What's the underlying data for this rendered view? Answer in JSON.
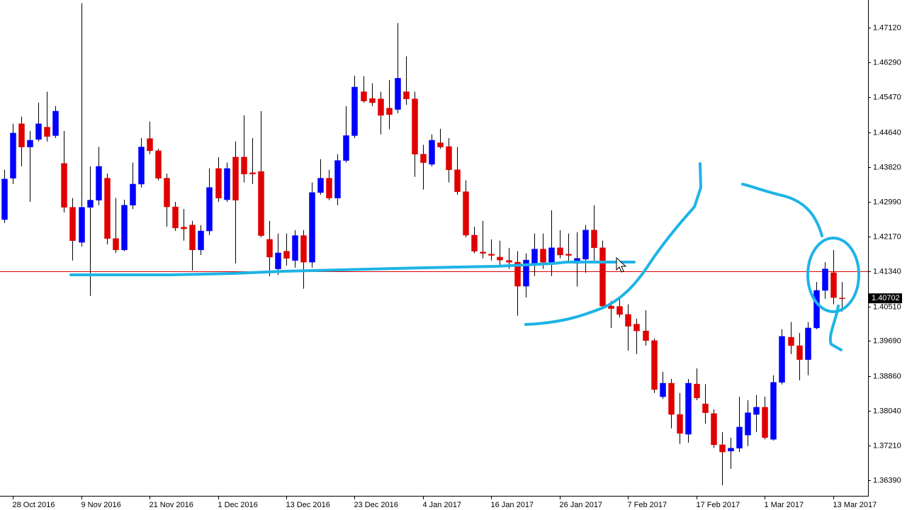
{
  "chart_data": {
    "type": "candlestick",
    "up_color": "#0000ff",
    "down_color": "#e00000",
    "wick_color": "#000000",
    "line_color": "#e00000",
    "ylim": [
      1.3602,
      1.47775
    ],
    "yticks": [
      {
        "value": 1.4712,
        "label": "1.47120"
      },
      {
        "value": 1.4629,
        "label": "1.46290"
      },
      {
        "value": 1.4547,
        "label": "1.45470"
      },
      {
        "value": 1.4464,
        "label": "1.44640"
      },
      {
        "value": 1.4382,
        "label": "1.43820"
      },
      {
        "value": 1.4299,
        "label": "1.42990"
      },
      {
        "value": 1.4217,
        "label": "1.42170"
      },
      {
        "value": 1.4134,
        "label": "1.41340"
      },
      {
        "value": 1.4051,
        "label": "1.40510"
      },
      {
        "value": 1.3969,
        "label": "1.39690"
      },
      {
        "value": 1.3886,
        "label": "1.38860"
      },
      {
        "value": 1.3804,
        "label": "1.38040"
      },
      {
        "value": 1.3721,
        "label": "1.37210"
      },
      {
        "value": 1.3639,
        "label": "1.36390"
      }
    ],
    "horizontal_line": 1.4134,
    "last_price": 1.40702,
    "categories": [
      null,
      "28 Oct 2016",
      null,
      null,
      null,
      null,
      null,
      null,
      null,
      "9 Nov 2016",
      null,
      null,
      null,
      null,
      null,
      null,
      null,
      "21 Nov 2016",
      null,
      null,
      null,
      null,
      null,
      null,
      null,
      "1 Dec 2016",
      null,
      null,
      null,
      null,
      null,
      null,
      null,
      "13 Dec 2016",
      null,
      null,
      null,
      null,
      null,
      null,
      null,
      "23 Dec 2016",
      null,
      null,
      null,
      null,
      null,
      null,
      null,
      "4 Jan 2017",
      null,
      null,
      null,
      null,
      null,
      null,
      null,
      "16 Jan 2017",
      null,
      null,
      null,
      null,
      null,
      null,
      null,
      "26 Jan 2017",
      null,
      null,
      null,
      null,
      null,
      null,
      null,
      "7 Feb 2017",
      null,
      null,
      null,
      null,
      null,
      null,
      null,
      "17 Feb 2017",
      null,
      null,
      null,
      null,
      null,
      null,
      null,
      "1 Mar 2017",
      null,
      null,
      null,
      null,
      null,
      null,
      null,
      "13 Mar 2017",
      null
    ],
    "open": [
      1.4257,
      1.4355,
      1.4484,
      1.4429,
      1.4447,
      1.4476,
      1.4456,
      1.439,
      1.4286,
      1.4203,
      1.4286,
      1.4303,
      1.4355,
      1.4212,
      1.4185,
      1.4291,
      1.4341,
      1.4449,
      1.442,
      1.4355,
      1.4287,
      1.4239,
      1.4244,
      1.4185,
      1.423,
      1.4378,
      1.4304,
      1.4405,
      1.4405,
      1.4368,
      1.4371,
      1.421,
      1.414,
      1.4182,
      1.416,
      1.4219,
      1.4156,
      1.4321,
      1.4355,
      1.4308,
      1.4397,
      1.4456,
      1.456,
      1.4544,
      1.4543,
      1.4521,
      1.4518,
      1.456,
      1.4543,
      1.4412,
      1.4388,
      1.4439,
      1.443,
      1.4375,
      1.4323,
      1.422,
      1.418,
      1.4175,
      1.4168,
      1.416,
      1.4156,
      1.4099,
      1.4148,
      1.4187,
      1.4156,
      1.419,
      1.4175,
      1.4153,
      1.4163,
      1.4232,
      1.419,
      1.4052,
      1.4051,
      1.4032,
      1.4009,
      1.3993,
      1.397,
      1.3837,
      1.3869,
      1.3795,
      1.3748,
      1.3867,
      1.382,
      1.3797,
      1.3723,
      1.3708,
      1.3715,
      1.3746,
      1.3795,
      1.3812,
      1.3736,
      1.3871,
      1.3978,
      1.3958,
      1.3925,
      1.4,
      1.4089,
      1.4131,
      1.4071
    ],
    "high": [
      1.4375,
      1.4484,
      1.4501,
      1.4467,
      1.4534,
      1.456,
      1.4526,
      1.4467,
      1.4308,
      1.477,
      1.4383,
      1.4429,
      1.4366,
      1.4308,
      1.4304,
      1.4392,
      1.445,
      1.4489,
      1.4425,
      1.4366,
      1.4299,
      1.4282,
      1.4254,
      1.4244,
      1.4378,
      1.4405,
      1.4392,
      1.4442,
      1.4504,
      1.445,
      1.4514,
      1.4254,
      1.4224,
      1.4224,
      1.4232,
      1.4232,
      1.4345,
      1.44,
      1.4375,
      1.4412,
      1.4526,
      1.4598,
      1.4597,
      1.458,
      1.456,
      1.4588,
      1.4723,
      1.4644,
      1.456,
      1.4434,
      1.4459,
      1.4472,
      1.445,
      1.4429,
      1.435,
      1.424,
      1.4254,
      1.421,
      1.4207,
      1.419,
      1.4182,
      1.4177,
      1.4224,
      1.4224,
      1.4279,
      1.4232,
      1.4224,
      1.4227,
      1.4244,
      1.4291,
      1.4207,
      1.4064,
      1.4069,
      1.4056,
      1.4022,
      1.4042,
      1.3975,
      1.3896,
      1.3879,
      1.3846,
      1.3879,
      1.3904,
      1.3867,
      1.3807,
      1.3753,
      1.374,
      1.3837,
      1.3829,
      1.3841,
      1.3837,
      1.3888,
      1.3997,
      1.4014,
      1.3988,
      1.4014,
      1.4109,
      1.4156,
      1.4185,
      1.4109
    ],
    "low": [
      1.4249,
      1.4341,
      1.4383,
      1.4299,
      1.4442,
      1.4442,
      1.445,
      1.4274,
      1.416,
      1.4193,
      1.4076,
      1.4291,
      1.4198,
      1.4178,
      1.4182,
      1.4282,
      1.4333,
      1.4412,
      1.435,
      1.424,
      1.423,
      1.4207,
      1.4136,
      1.4173,
      1.422,
      1.4299,
      1.4299,
      1.4153,
      1.4345,
      1.4341,
      1.4215,
      1.4123,
      1.4126,
      1.4148,
      1.4143,
      1.4093,
      1.4143,
      1.4316,
      1.4303,
      1.4291,
      1.4392,
      1.445,
      1.4534,
      1.4526,
      1.4459,
      1.4471,
      1.4509,
      1.4529,
      1.4358,
      1.4328,
      1.4383,
      1.4425,
      1.4345,
      1.4316,
      1.4215,
      1.4177,
      1.4165,
      1.416,
      1.4146,
      1.414,
      1.4029,
      1.4072,
      1.4123,
      1.414,
      1.4123,
      1.4165,
      1.4153,
      1.4098,
      1.4131,
      1.416,
      1.4047,
      1.4,
      1.4025,
      1.3946,
      1.3938,
      1.3958,
      1.3846,
      1.3832,
      1.3762,
      1.3725,
      1.3728,
      1.3829,
      1.3773,
      1.3716,
      1.3627,
      1.3666,
      1.3706,
      1.372,
      1.3753,
      1.3736,
      1.3733,
      1.3866,
      1.3938,
      1.3876,
      1.3888,
      1.3997,
      1.4069,
      1.4056,
      1.4039
    ],
    "close": [
      1.4353,
      1.4462,
      1.4429,
      1.4445,
      1.4484,
      1.4454,
      1.4514,
      1.4286,
      1.4207,
      1.4286,
      1.4303,
      1.4383,
      1.4212,
      1.4185,
      1.4291,
      1.4341,
      1.4429,
      1.442,
      1.4355,
      1.4287,
      1.4237,
      1.4235,
      1.4185,
      1.423,
      1.4333,
      1.4308,
      1.4378,
      1.4303,
      1.4365,
      1.4365,
      1.4219,
      1.4168,
      1.4178,
      1.4165,
      1.4219,
      1.4156,
      1.4321,
      1.4355,
      1.4308,
      1.4397,
      1.4456,
      1.4571,
      1.4538,
      1.4534,
      1.4504,
      1.4506,
      1.4592,
      1.4543,
      1.4412,
      1.4392,
      1.4445,
      1.4429,
      1.4375,
      1.4323,
      1.422,
      1.4182,
      1.4177,
      1.4172,
      1.4161,
      1.4156,
      1.4099,
      1.4161,
      1.4187,
      1.4156,
      1.419,
      1.4173,
      1.4172,
      1.4165,
      1.4232,
      1.419,
      1.4052,
      1.4046,
      1.4032,
      1.4004,
      1.3993,
      1.397,
      1.3854,
      1.3869,
      1.3795,
      1.375,
      1.3869,
      1.3834,
      1.3799,
      1.3723,
      1.3706,
      1.3715,
      1.3765,
      1.3799,
      1.3812,
      1.374,
      1.3871,
      1.398,
      1.3958,
      1.3925,
      1.4,
      1.4089,
      1.414,
      1.4072,
      1.40702
    ]
  }
}
